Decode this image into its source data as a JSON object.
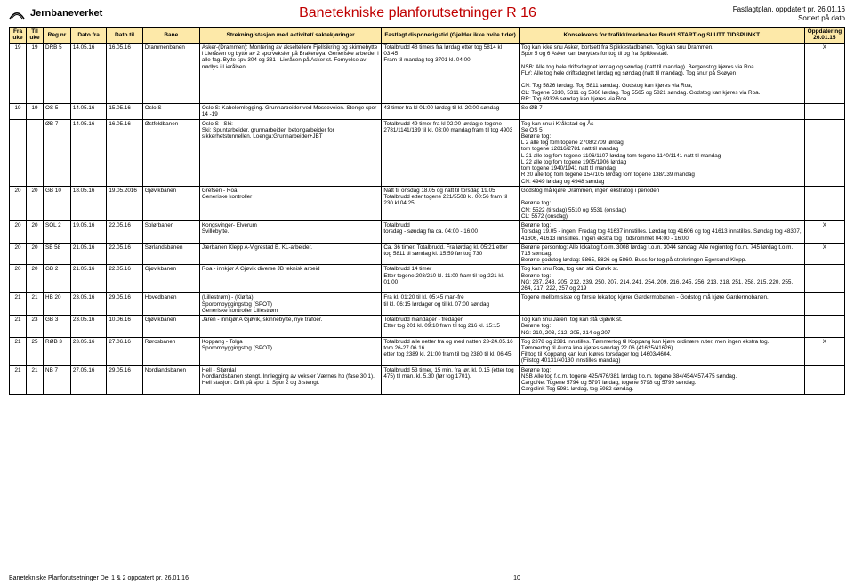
{
  "header": {
    "brand": "Jernbaneverket",
    "title": "Banetekniske planforutsetninger R 16",
    "meta1": "Fastlagtplan, oppdatert pr. 26.01.16",
    "meta2": "Sortert på dato"
  },
  "columns": {
    "fra": "Fra uke",
    "til": "Til uke",
    "reg": "Reg nr",
    "datoFra": "Dato fra",
    "datoTil": "Dato til",
    "bane": "Bane",
    "strekning": "Strekning/stasjon med aktivitet/ saktekjøringer",
    "disp": "Fastlagt disponerigstid\n(Gjelder ikke hvite tider)",
    "konsekvens": "Konsekvens for trafikk/merknader\nBrudd START og SLUTT TIDSPUNKT",
    "opp": "Oppdatering 26.01.15"
  },
  "rows": [
    {
      "fra": "19",
      "til": "19",
      "reg": "DRB 5",
      "datoFra": "14.05.16",
      "datoTil": "16.05.16",
      "bane": "Drammenbanen",
      "strekning": "Asker-(Drammen): Montering av akseltellere Fjellsikring og skinnebytte i Lieråsen og bytte av 2 sporveksler på Brakerøya. Generiske arbeider i alle fag. Bytte spv 304 og 331 i Lieråsen på Asker st. Fornyelse av nødlys i Lierålsen",
      "disp": "Totalbrudd 48 timers fra lørdag etter tog 5814 kl 03:45\nFram til mandag tog 3701 kl. 04:00",
      "konsekvens": "Tog kan ikke snu Asker, bortsett fra Spikkestadbanen. Tog kan snu Drammen.\nSpor 5 og 6 Asker kan benyttes for tog til og fra Spikkestad.\n\nNSB: Alle tog hele driftsdøgnet lørdag og søndag (natt til mandag). Bergenstog kjøres via Roa.\nFLY: Alle tog hele driftsdøgnet lørdag og søndag (natt til mandag). Tog snur på Skøyen\n\nCN: Tog 5826 lørdag. Tog 5811 søndag. Godstog kan kjøres via Roa,\nCL: Togene 5310, 5311 og 5860 lørdag. Tog 5565 og 5821 søndag. Godstog kan kjøres via Roa.\nRR: Tog 69326 søndag kan kjøres via Roa",
      "opp": "X"
    },
    {
      "fra": "19",
      "til": "19",
      "reg": "OS 5",
      "datoFra": "14.05.16",
      "datoTil": "15.05.16",
      "bane": "Oslo S",
      "strekning": "Oslo S: Kabelomlegging. Grunnarbeider ved Mosseveien. Stenge spor 14 -19",
      "disp": "43 timer fra kl 01:00 lørdag til kl. 20:00 søndag",
      "konsekvens": "Se ØB 7",
      "opp": ""
    },
    {
      "fra": "",
      "til": "",
      "reg": "ØB 7",
      "datoFra": "14.05.16",
      "datoTil": "16.05.16",
      "bane": "Østfoldbanen",
      "strekning": "Oslo S - Ski:\nSki: Spuntarbeider, grunnarbeider, betongarbeider for sikkerhetstunnellen. Loenga:Grunnarbeider+JBT",
      "disp": "Totalbrudd 49 timer fra kl 02:00 lørdag e togene 2781/1141/139 til kl. 03:00 mandag fram til tog 4903",
      "konsekvens": "Tog kan snu i Kråkstad og Ås\nSe OS 5\nBerørte tog:\nL 2 alle tog fom togene 2708/2709 lørdag\ntom togene 12816/2781 natt til mandag\nL 21 alle tog fom togene 1106/1107 lørdag tom togene 1140/1141 natt til mandag\nL 22 alle tog fom togene 1905/1906 lørdag\ntom togene 1940/1941 natt til mandag\nR 20 alle tog fom togene 154/105 lørdag tom togene 138/139 mandag\nCN: 4949 lørdag og 4948 søndag",
      "opp": ""
    },
    {
      "fra": "20",
      "til": "20",
      "reg": "GB 10",
      "datoFra": "18.05.16",
      "datoTil": "19.05.2016",
      "bane": "Gjøvikbanen",
      "strekning": "Grefsen - Roa,\nGeneriske kontroller",
      "disp": "Natt til onsdag 18.05 og natt til torsdag 19.05\nTotalbrudd etter togene 221/5508 kl. 00:56 fram til 230 kl 04:25",
      "konsekvens": "Godstog må kjøre Drammen, ingen ekstratog i perioden\n\nBerørte tog:\nCN: 5522 (tirsdag) 5510 og 5531 (onsdag)\nCL: 5572 (onsdag)",
      "opp": ""
    },
    {
      "fra": "20",
      "til": "20",
      "reg": "SOL 2",
      "datoFra": "19.05.16",
      "datoTil": "22.05.16",
      "bane": "Solørbanen",
      "strekning": "Kongsvinger- Elverum\nSvillebytte.",
      "disp": "Totalbrudd\ntorsdag - søndag fra ca. 04:00 - 16:00",
      "konsekvens": "Berørte tog:\nTorsdag 19.05 - ingen. Fredag tog 41637 innstilles. Lørdag tog 41606 og tog 41613 innstilles. Søndag tog 48307, 41606, 41613 innstilles. Ingen ekstra tog i tidsrommet 04:00 - 16:00",
      "opp": "X"
    },
    {
      "fra": "20",
      "til": "20",
      "reg": "SB 58",
      "datoFra": "21.05.16",
      "datoTil": "22.05.16",
      "bane": "Sørlandsbanen",
      "strekning": "Jærbanen Klepp A-Vigrestad B. KL-arbeider.",
      "disp": "Ca. 36 timer. Totalbrudd. Fra lørdag kl. 05:21 etter tog 5811 til søndag kl. 15:59 før tog 730",
      "konsekvens": "Berørte persontog: Alle lokaltog f.o.m. 3008 lørdag t.o.m. 3044 søndag. Alle regiontog f.o.m. 745 lørdag t.o.m. 715 søndag.\nBerørte godstog lørdag: 5865, 5826 og 5860. Buss for tog på strekningen Egersund-Klepp.",
      "opp": "X"
    },
    {
      "fra": "20",
      "til": "20",
      "reg": "GB 2",
      "datoFra": "21.05.16",
      "datoTil": "22.05.16",
      "bane": "Gjøvikbanen",
      "strekning": "Roa - innkjør A Gjøvik diverse JB teknisk arbeid",
      "disp": "Totalbrudd 14 timer\nEtter togene 203/210 kl. 11:00 fram til tog 221 kl. 01:00",
      "konsekvens": "Tog kan snu Roa, tog kan stå Gjøvik st.\nBerørte tog:\nNG: 237, 248, 205, 212, 239, 250, 207, 214, 241, 254, 209, 216, 245, 256, 213, 218, 251, 258, 215, 220, 255, 264, 217, 222, 257 og 219",
      "opp": ""
    },
    {
      "fra": "21",
      "til": "21",
      "reg": "HB 20",
      "datoFra": "23.05.16",
      "datoTil": "29.05.16",
      "bane": "Hovedbanen",
      "strekning": "(Lillestrøm) - (Kløfta)\nSporombyggingstog (SPOT)\nGeneriske kontroller Lillestrøm",
      "disp": "Fra kl. 01:20 til kl. 05:45 man-fre\ntil kl. 06:15 lørdager og til kl. 07:00 søndag",
      "konsekvens": "Togene mellom siste og første lokaltog kjører Gardermobanen - Godstog må kjøre Gardermobanen.",
      "opp": ""
    },
    {
      "fra": "21",
      "til": "23",
      "reg": "GB 3",
      "datoFra": "23.05.16",
      "datoTil": "10.06.16",
      "bane": "Gjøvikbanen",
      "strekning": "Jaren - innkjør A Gjøvik, skinnebytte, nye trafoer.",
      "disp": "Totalbrudd mandager - fredager\nEtter tog 201 kl. 09:10 fram til tog 216 kl. 15:15",
      "konsekvens": "Tog kan snu Jaren, tog kan stå Gjøvik st.\nBerørte tog:\nNG: 210, 203, 212, 205, 214 og 207",
      "opp": ""
    },
    {
      "fra": "21",
      "til": "25",
      "reg": "RØB 3",
      "datoFra": "23.05.16",
      "datoTil": "27.06.16",
      "bane": "Rørosbanen",
      "strekning": "Koppang - Tolga\nSporombyggingstog (SPOT)",
      "disp": "Totalbrudd alle netter fra og med natten 23-24.05.16 tom 26-27.06.16\netter tog 2389 kl. 21:00 fram til tog 2380 til kl. 06:45",
      "konsekvens": "Tog 2378 og 2391 innstilles. Tømmertog til Koppang kan kjøre ordinære ruter, men ingen ekstra tog.\nTømmertog til Auma kna kjøres søndag 22.06 (41625/41626)\nFilttog til Koppang kan kun kjøres torsdager tog 14603/4604.\n(Filstog 40131/40130 innstilles mandag)",
      "opp": "X"
    },
    {
      "fra": "21",
      "til": "21",
      "reg": "NB 7",
      "datoFra": "27.05.16",
      "datoTil": "29.05.16",
      "bane": "Nordlandsbanen",
      "strekning": "Hell - Stjørdal\nNordlandsbanen stengt. Innlegging av veksler Værnes hp (fase 30.1). Hell stasjon: Drift på spor 1. Spor 2 og 3 stengt.",
      "disp": "Totalbrudd 53 timer, 15 min. fra lør. kl. 0.15 (etter tog 475) til man. kl. 5.30 (før tog 1701).",
      "konsekvens": "Berørte tog:\nNSB Alle tog f.o.m. togene 425/476/381 lørdag t.o.m. togene 384/454/457/475 søndag.\nCargoNet Togene 5794 og 5797 lørdag, togene 5798 og 5799 søndag.\nCargolink Tog 5981 lørdag, tog 5982 søndag.",
      "opp": ""
    }
  ],
  "footer": {
    "left": "Banetekniske Planforutsetninger Del 1 & 2 oppdatert pr. 26.01.16",
    "page": "10"
  },
  "colors": {
    "titleColor": "#c00000",
    "headerBg": "#fde9a9"
  }
}
